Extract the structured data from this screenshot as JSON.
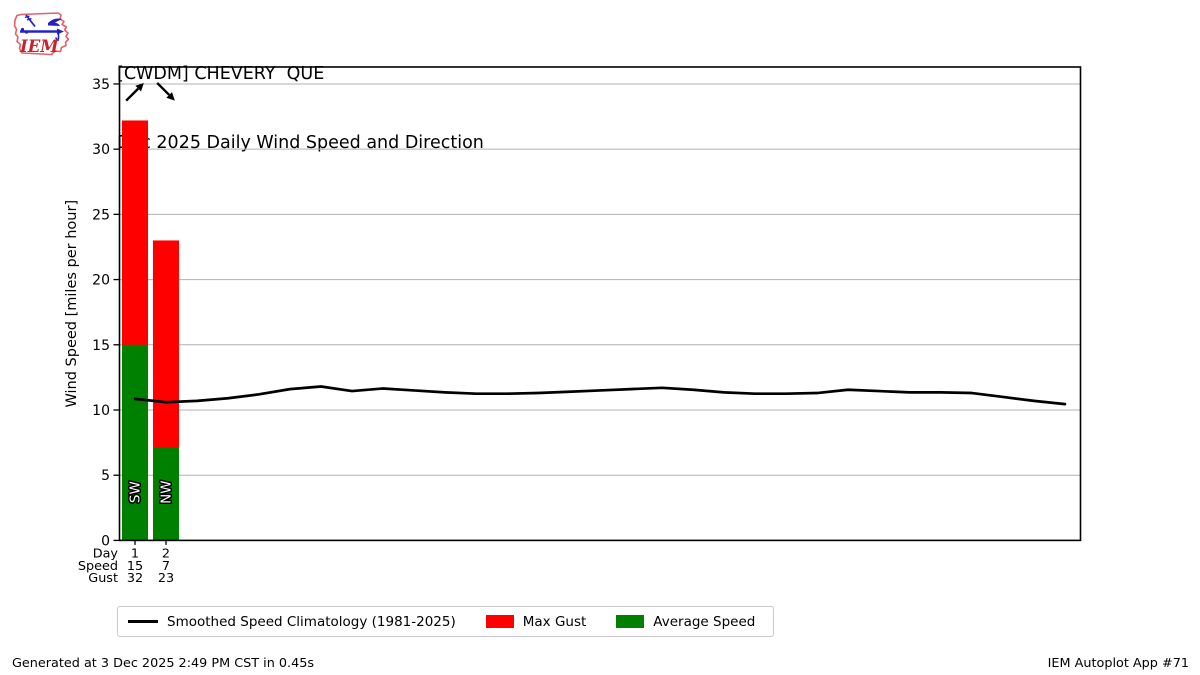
{
  "branding": {
    "logo_text": "IEM"
  },
  "header": {
    "title": "[CWDM] CHEVERY  QUE",
    "subtitle": "Dec 2025 Daily Wind Speed and Direction"
  },
  "footer": {
    "generated": "Generated at 3 Dec 2025 2:49 PM CST in 0.45s",
    "app": "IEM Autoplot App #71"
  },
  "legend": {
    "items": [
      {
        "swatch": "line",
        "color": "#000000",
        "label": "Smoothed Speed Climatology (1981-2025)"
      },
      {
        "swatch": "patch",
        "color": "#ff0000",
        "label": "Max Gust"
      },
      {
        "swatch": "patch",
        "color": "#008000",
        "label": "Average Speed"
      }
    ]
  },
  "chart_data": {
    "type": "bar",
    "title": "[CWDM] CHEVERY  QUE",
    "subtitle": "Dec 2025 Daily Wind Speed and Direction",
    "xlabel": "",
    "ylabel": "Wind Speed [miles per hour]",
    "ylim": [
      0,
      36.3
    ],
    "xlim": [
      0.5,
      31.5
    ],
    "yticks": [
      0,
      5,
      10,
      15,
      20,
      25,
      30,
      35
    ],
    "grid": "horizontal-only",
    "legend_position": "lower-left-outside",
    "colors": {
      "max_gust": "#ff0000",
      "avg_speed": "#008000",
      "climatology": "#000000",
      "grid": "#b0b0b0"
    },
    "bar_width_days": 0.84,
    "arrow_y": 34.4,
    "dir_label_y": 3.7,
    "bars": [
      {
        "day": 1,
        "avg_speed": 15.0,
        "max_gust": 32.2,
        "wind_from": "SW",
        "arrow_toward": "NE"
      },
      {
        "day": 2,
        "avg_speed": 7.1,
        "max_gust": 23.0,
        "wind_from": "NW",
        "arrow_toward": "SE"
      }
    ],
    "series": [
      {
        "name": "Smoothed Speed Climatology (1981-2025)",
        "type": "line",
        "x": [
          1,
          2,
          3,
          4,
          5,
          6,
          7,
          8,
          9,
          10,
          11,
          12,
          13,
          14,
          15,
          16,
          17,
          18,
          19,
          20,
          21,
          22,
          23,
          24,
          25,
          26,
          27,
          28,
          29,
          30,
          31
        ],
        "values": [
          10.85,
          10.6,
          10.7,
          10.9,
          11.2,
          11.6,
          11.8,
          11.45,
          11.65,
          11.5,
          11.35,
          11.25,
          11.25,
          11.3,
          11.4,
          11.5,
          11.6,
          11.7,
          11.55,
          11.35,
          11.25,
          11.25,
          11.3,
          11.55,
          11.45,
          11.35,
          11.35,
          11.3,
          11.0,
          10.7,
          10.45
        ]
      }
    ],
    "bottom_table": {
      "row_labels": [
        "Day",
        "Speed",
        "Gust"
      ],
      "columns": [
        {
          "day": "1",
          "speed": "15",
          "gust": "32"
        },
        {
          "day": "2",
          "speed": "7",
          "gust": "23"
        }
      ]
    }
  }
}
